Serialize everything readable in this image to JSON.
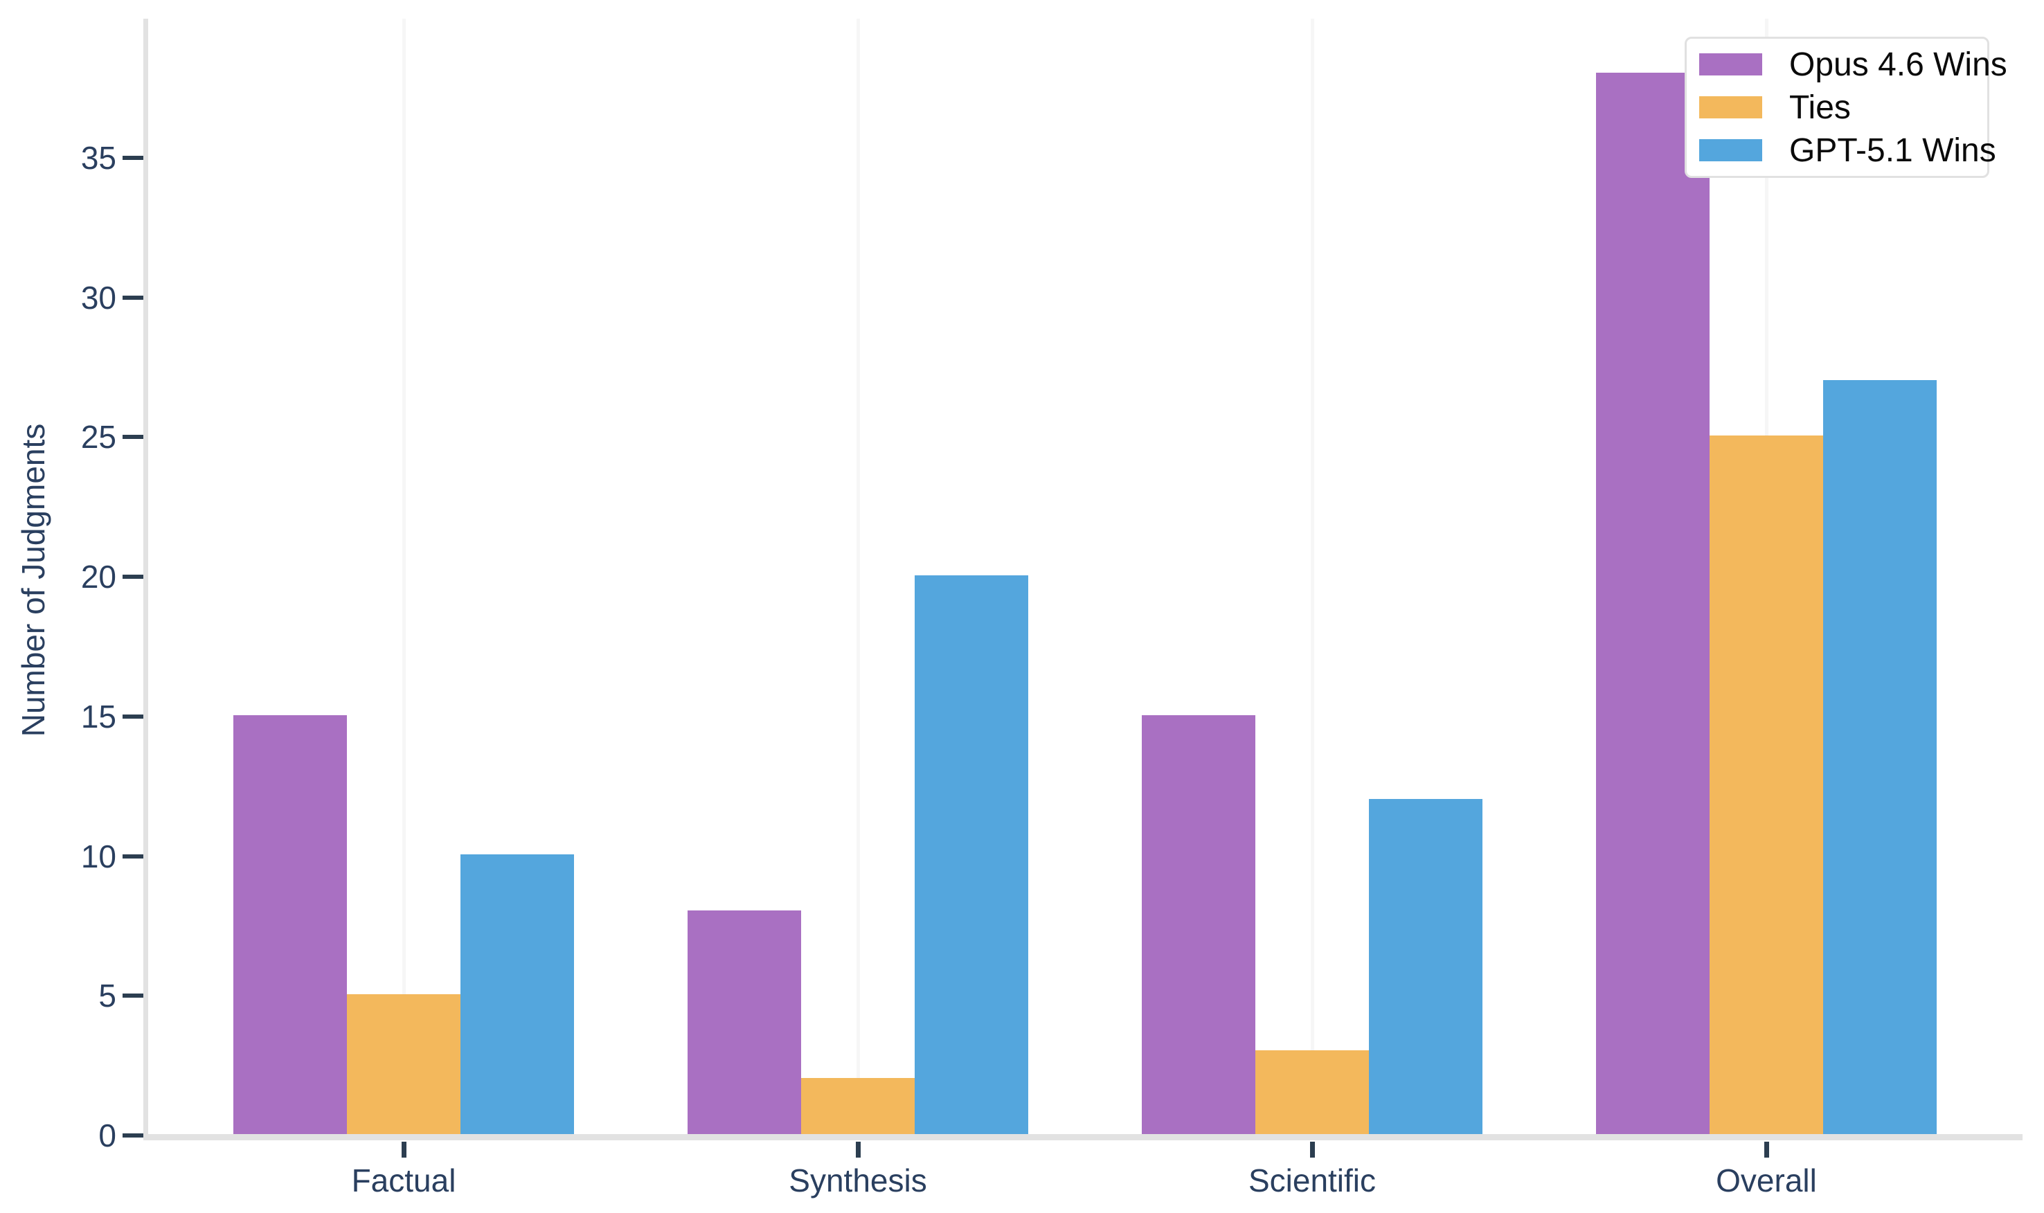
{
  "chart_data": {
    "type": "bar",
    "title": "",
    "categories": [
      "Factual",
      "Synthesis",
      "Scientific",
      "Overall"
    ],
    "series": [
      {
        "name": "Opus 4.6 Wins",
        "color": "#a970c2",
        "values": [
          15,
          8,
          15,
          38
        ]
      },
      {
        "name": "Ties",
        "color": "#f3b85c",
        "values": [
          5,
          2,
          3,
          25
        ]
      },
      {
        "name": "GPT-5.1 Wins",
        "color": "#54a6dd",
        "values": [
          10,
          20,
          12,
          27
        ]
      }
    ],
    "xlabel": "",
    "ylabel": "Number of Judgments",
    "ylim": [
      0,
      40
    ],
    "yticks": [
      0,
      5,
      10,
      15,
      20,
      25,
      30,
      35
    ],
    "grid": "faint vertical gridline at each category center, no horizontal gridlines",
    "legend_position": "top-right"
  },
  "colors": {
    "background": "#ffffff",
    "axis_line": "#e2e2e2",
    "tick_mark": "#2c3e50",
    "axis_text": "#2a3f5f",
    "gridline": "#f6f6f6",
    "legend_border": "#e1e1e1",
    "legend_text": "#0a0a0a"
  }
}
